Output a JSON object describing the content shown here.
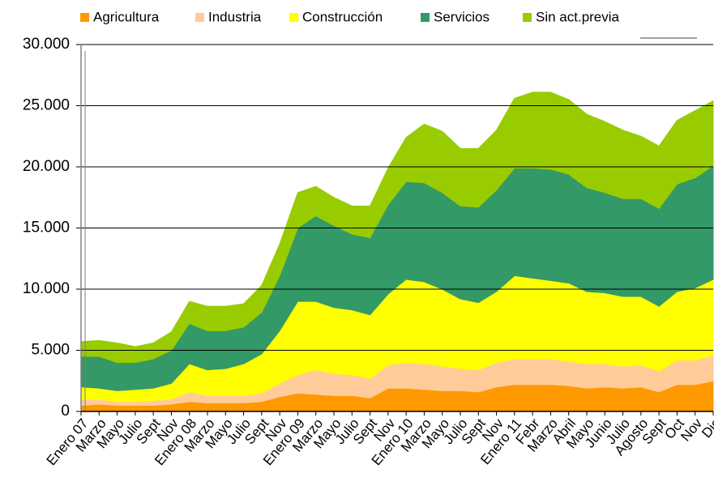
{
  "chart_data": {
    "type": "stacked-area",
    "categories": [
      "Enero 07",
      "Marzo",
      "Mayo",
      "Julio",
      "Sept",
      "Nov",
      "Enero 08",
      "Marzo",
      "Mayo",
      "Julio",
      "Sept",
      "Nov",
      "Enero 09",
      "Marzo",
      "Mayo",
      "Julio",
      "Sept",
      "Nov",
      "Enero 10",
      "Marzo",
      "Mayo",
      "Julio",
      "Sept",
      "Nov",
      "Enero 11",
      "Febr",
      "Marzo",
      "Abril",
      "Mayo",
      "Junio",
      "Julio",
      "Agosto",
      "Sept",
      "Oct",
      "Nov",
      "Dic"
    ],
    "series": [
      {
        "name": "Agricultura",
        "color": "#ff9900",
        "values": [
          500,
          600,
          500,
          500,
          500,
          600,
          800,
          700,
          700,
          700,
          800,
          1200,
          1500,
          1400,
          1300,
          1300,
          1100,
          1900,
          1900,
          1800,
          1700,
          1700,
          1600,
          2000,
          2200,
          2200,
          2200,
          2100,
          1900,
          2000,
          1900,
          2000,
          1600,
          2200,
          2200,
          2500
        ]
      },
      {
        "name": "Industria",
        "color": "#ffcc99",
        "values": [
          500,
          400,
          300,
          300,
          400,
          400,
          800,
          600,
          600,
          600,
          700,
          1100,
          1500,
          2000,
          1800,
          1700,
          1600,
          1900,
          2100,
          2100,
          2000,
          1800,
          1800,
          2000,
          2100,
          2100,
          2100,
          2000,
          2000,
          1900,
          1800,
          1800,
          1700,
          2000,
          2000,
          2100
        ]
      },
      {
        "name": "Construcción",
        "color": "#ffff00",
        "values": [
          1000,
          900,
          900,
          1000,
          1000,
          1300,
          2300,
          2100,
          2200,
          2600,
          3200,
          4300,
          6000,
          5600,
          5400,
          5300,
          5200,
          5800,
          6800,
          6700,
          6300,
          5700,
          5500,
          5800,
          6800,
          6600,
          6400,
          6400,
          5900,
          5800,
          5700,
          5600,
          5300,
          5600,
          5900,
          6200
        ]
      },
      {
        "name": "Servicios",
        "color": "#339966",
        "values": [
          2500,
          2600,
          2300,
          2200,
          2400,
          2700,
          3300,
          3200,
          3100,
          3000,
          3400,
          4500,
          6000,
          7000,
          6700,
          6200,
          6300,
          7300,
          8000,
          8100,
          7900,
          7600,
          7800,
          8300,
          8800,
          9000,
          9100,
          8900,
          8500,
          8200,
          8000,
          8000,
          8000,
          8800,
          9000,
          9300
        ]
      },
      {
        "name": "Sin act.previa",
        "color": "#99cc00",
        "values": [
          1200,
          1300,
          1600,
          1300,
          1300,
          1500,
          1800,
          2000,
          2000,
          1900,
          2200,
          2600,
          2900,
          2400,
          2300,
          2300,
          2600,
          3000,
          3600,
          4800,
          5000,
          4700,
          4800,
          4900,
          5700,
          6200,
          6300,
          6100,
          6000,
          5800,
          5600,
          5100,
          5100,
          5200,
          5500,
          5300
        ]
      }
    ],
    "ylim": [
      0,
      30000
    ],
    "yticks": [
      0,
      {
        "value": 5000,
        "label": "5.000"
      },
      {
        "value": 10000,
        "label": "10.000"
      },
      {
        "value": 15000,
        "label": "15.000"
      },
      {
        "value": 20000,
        "label": "20.000"
      },
      {
        "value": 25000,
        "label": "25.000"
      },
      {
        "value": 30000,
        "label": "30.000"
      }
    ],
    "grid": true,
    "legend": "top"
  }
}
